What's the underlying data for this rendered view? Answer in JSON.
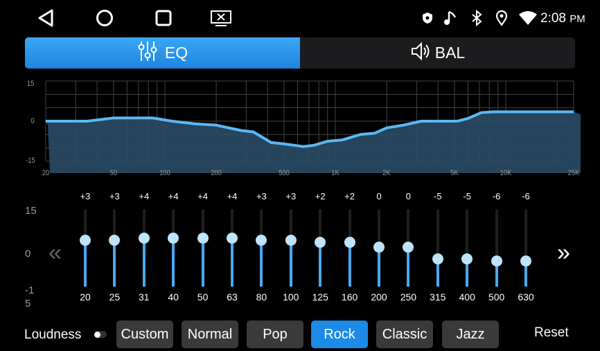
{
  "status_bar": {
    "time": "2:08",
    "ampm": "PM",
    "icons": [
      "back-icon",
      "home-icon",
      "recents-icon",
      "screen-cast-icon",
      "shield-icon",
      "music-note-icon",
      "bluetooth-icon",
      "location-icon",
      "wifi-icon"
    ]
  },
  "tabs": [
    {
      "label": "EQ",
      "icon": "equalizer-sliders-icon",
      "active": true
    },
    {
      "label": "BAL",
      "icon": "speaker-icon",
      "active": false
    }
  ],
  "graph": {
    "y_ticks": [
      "15",
      "0",
      "-15"
    ],
    "x_ticks": [
      {
        "f": 20,
        "label": "20"
      },
      {
        "f": 50,
        "label": "50"
      },
      {
        "f": 100,
        "label": "100"
      },
      {
        "f": 200,
        "label": "200"
      },
      {
        "f": 500,
        "label": "500"
      },
      {
        "f": 1000,
        "label": "1K"
      },
      {
        "f": 2000,
        "label": "2K"
      },
      {
        "f": 5000,
        "label": "5K"
      },
      {
        "f": 10000,
        "label": "10K"
      },
      {
        "f": 25000,
        "label": "25K"
      }
    ],
    "curve": [
      [
        20,
        0
      ],
      [
        35,
        0
      ],
      [
        50,
        1.2
      ],
      [
        85,
        1.2
      ],
      [
        110,
        0
      ],
      [
        150,
        -1
      ],
      [
        200,
        -1.5
      ],
      [
        280,
        -3.5
      ],
      [
        330,
        -4
      ],
      [
        420,
        -8
      ],
      [
        500,
        -8.5
      ],
      [
        650,
        -9.5
      ],
      [
        750,
        -9
      ],
      [
        900,
        -7.5
      ],
      [
        1100,
        -7
      ],
      [
        1400,
        -5
      ],
      [
        1700,
        -4.5
      ],
      [
        2000,
        -2.5
      ],
      [
        2500,
        -1.5
      ],
      [
        3200,
        0
      ],
      [
        5200,
        0
      ],
      [
        6000,
        1
      ],
      [
        7200,
        3.2
      ],
      [
        8500,
        3.5
      ],
      [
        25000,
        3.5
      ]
    ],
    "line_color": "#5bb8f5",
    "fill_color": "#2a4b66"
  },
  "slider_scale": {
    "top": "15",
    "mid": "0",
    "bottom_1": "-1",
    "bottom_2": "5"
  },
  "bands": [
    {
      "freq": "20",
      "label": "+3",
      "value": 3
    },
    {
      "freq": "25",
      "label": "+3",
      "value": 3
    },
    {
      "freq": "31",
      "label": "+4",
      "value": 4
    },
    {
      "freq": "40",
      "label": "+4",
      "value": 4
    },
    {
      "freq": "50",
      "label": "+4",
      "value": 4
    },
    {
      "freq": "63",
      "label": "+4",
      "value": 4
    },
    {
      "freq": "80",
      "label": "+3",
      "value": 3
    },
    {
      "freq": "100",
      "label": "+3",
      "value": 3
    },
    {
      "freq": "125",
      "label": "+2",
      "value": 2
    },
    {
      "freq": "160",
      "label": "+2",
      "value": 2
    },
    {
      "freq": "200",
      "label": "0",
      "value": 0
    },
    {
      "freq": "250",
      "label": "0",
      "value": 0
    },
    {
      "freq": "315",
      "label": "-5",
      "value": -5
    },
    {
      "freq": "400",
      "label": "-5",
      "value": -5
    },
    {
      "freq": "500",
      "label": "-6",
      "value": -6
    },
    {
      "freq": "630",
      "label": "-6",
      "value": -6
    }
  ],
  "nav": {
    "prev": "«",
    "next": "»"
  },
  "loudness": {
    "label": "Loudness",
    "on": false
  },
  "presets": [
    {
      "label": "Custom"
    },
    {
      "label": "Normal"
    },
    {
      "label": "Pop"
    },
    {
      "label": "Rock",
      "active": true
    },
    {
      "label": "Classic"
    },
    {
      "label": "Jazz"
    }
  ],
  "reset": "Reset",
  "accent": "#1c8ae6"
}
